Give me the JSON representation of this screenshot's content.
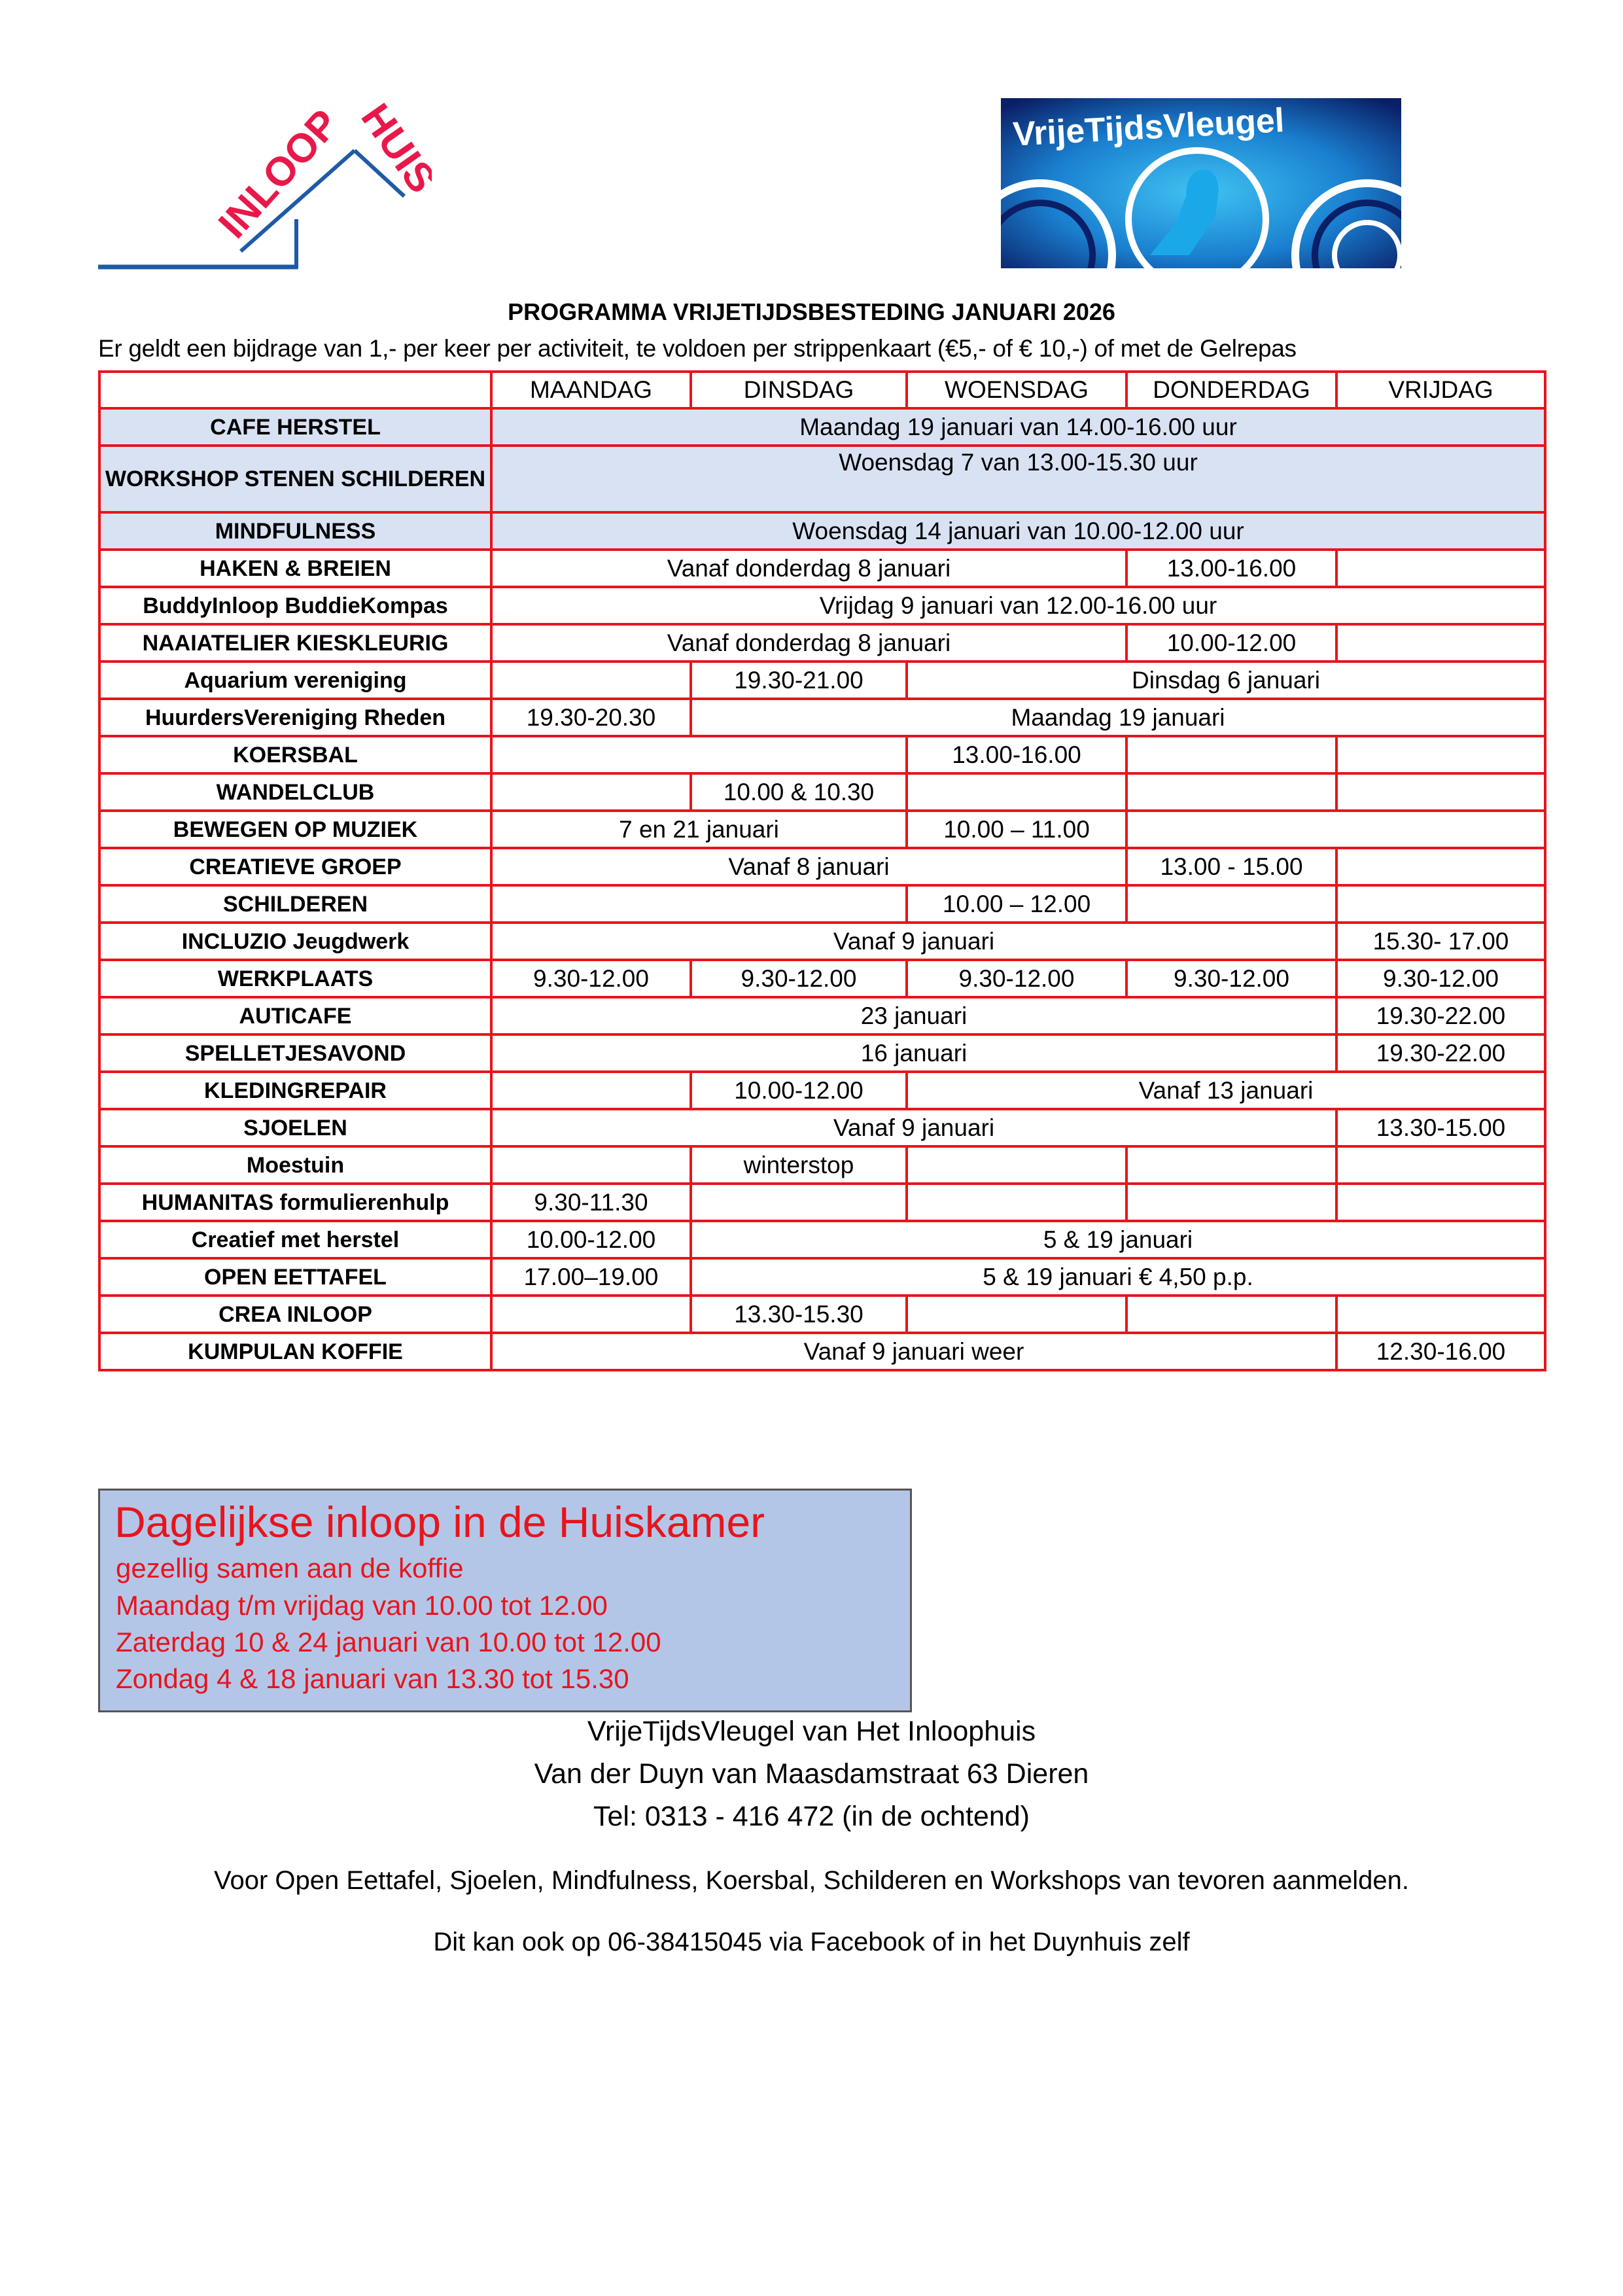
{
  "logos": {
    "left": {
      "word1": "INLOOP",
      "word2": "HUIS",
      "red": "#e8194a",
      "blue": "#1f5aa6"
    },
    "right": {
      "text": "VrijeTijdsVleugel",
      "blue": "#1a7fd0"
    }
  },
  "title": "PROGRAMMA VRIJETIJDSBESTEDING JANUARI 2026",
  "subtitle": "Er geldt een bijdrage van  1,- per keer per activiteit, te voldoen per strippenkaart (€5,- of € 10,-) of met de Gelrepas",
  "colors": {
    "border": "#e8141c",
    "highlight_row": "#d9e2f3",
    "box_bg": "#b4c6e7",
    "box_text": "#e8141c"
  },
  "table": {
    "days": [
      "MAANDAG",
      "DINSDAG",
      "WOENSDAG",
      "DONDERDAG",
      "VRIJDAG"
    ],
    "rows": [
      {
        "label": "CAFE HERSTEL",
        "hl": true,
        "cells": [
          {
            "t": "Maandag 19 januari van 14.00-16.00 uur",
            "s": 5
          }
        ]
      },
      {
        "label": "WORKSHOP STENEN SCHILDEREN",
        "hl": true,
        "tall": true,
        "cells": [
          {
            "t": "Woensdag 7 van 13.00-15.30 uur",
            "s": 5
          }
        ]
      },
      {
        "label": "MINDFULNESS",
        "hl": true,
        "cells": [
          {
            "t": "Woensdag 14 januari van 10.00-12.00 uur",
            "s": 5
          }
        ]
      },
      {
        "label": "HAKEN & BREIEN",
        "cells": [
          {
            "t": "Vanaf donderdag 8 januari",
            "s": 3
          },
          {
            "t": "13.00-16.00"
          },
          {
            "t": ""
          }
        ]
      },
      {
        "label": "BuddyInloop BuddieKompas",
        "cells": [
          {
            "t": "Vrijdag 9 januari van 12.00-16.00 uur",
            "s": 5
          }
        ]
      },
      {
        "label": "NAAIATELIER KIESKLEURIG",
        "cells": [
          {
            "t": "Vanaf donderdag 8 januari",
            "s": 3
          },
          {
            "t": "10.00-12.00"
          },
          {
            "t": ""
          }
        ]
      },
      {
        "label": "Aquarium vereniging",
        "cells": [
          {
            "t": ""
          },
          {
            "t": "19.30-21.00"
          },
          {
            "t": "Dinsdag 6 januari",
            "s": 3
          }
        ]
      },
      {
        "label": "HuurdersVereniging Rheden",
        "cells": [
          {
            "t": "19.30-20.30"
          },
          {
            "t": "Maandag 19 januari",
            "s": 4
          }
        ]
      },
      {
        "label": "KOERSBAL",
        "cells": [
          {
            "t": "",
            "s": 2
          },
          {
            "t": "13.00-16.00"
          },
          {
            "t": ""
          },
          {
            "t": ""
          }
        ]
      },
      {
        "label": "WANDELCLUB",
        "cells": [
          {
            "t": ""
          },
          {
            "t": "10.00 & 10.30"
          },
          {
            "t": ""
          },
          {
            "t": ""
          },
          {
            "t": ""
          }
        ]
      },
      {
        "label": "BEWEGEN OP MUZIEK",
        "cells": [
          {
            "t": "7 en 21 januari",
            "s": 2
          },
          {
            "t": "10.00 – 11.00"
          },
          {
            "t": "",
            "s": 2
          }
        ]
      },
      {
        "label": "CREATIEVE GROEP",
        "cells": [
          {
            "t": "Vanaf 8 januari",
            "s": 3
          },
          {
            "t": "13.00 - 15.00"
          },
          {
            "t": ""
          }
        ]
      },
      {
        "label": "SCHILDEREN",
        "cells": [
          {
            "t": "",
            "s": 2
          },
          {
            "t": "10.00 – 12.00"
          },
          {
            "t": ""
          },
          {
            "t": ""
          }
        ]
      },
      {
        "label": "INCLUZIO Jeugdwerk",
        "cells": [
          {
            "t": "Vanaf 9 januari",
            "s": 4
          },
          {
            "t": "15.30- 17.00"
          }
        ]
      },
      {
        "label": "WERKPLAATS",
        "cells": [
          {
            "t": "9.30-12.00"
          },
          {
            "t": "9.30-12.00"
          },
          {
            "t": "9.30-12.00"
          },
          {
            "t": "9.30-12.00"
          },
          {
            "t": "9.30-12.00"
          }
        ]
      },
      {
        "label": "AUTICAFE",
        "cells": [
          {
            "t": "23 januari",
            "s": 4
          },
          {
            "t": "19.30-22.00"
          }
        ]
      },
      {
        "label": "SPELLETJESAVOND",
        "cells": [
          {
            "t": "16 januari",
            "s": 4
          },
          {
            "t": "19.30-22.00"
          }
        ]
      },
      {
        "label": "KLEDINGREPAIR",
        "cells": [
          {
            "t": ""
          },
          {
            "t": "10.00-12.00"
          },
          {
            "t": "Vanaf 13 januari",
            "s": 3
          }
        ]
      },
      {
        "label": "SJOELEN",
        "cells": [
          {
            "t": "Vanaf 9 januari",
            "s": 4
          },
          {
            "t": "13.30-15.00"
          }
        ]
      },
      {
        "label": "Moestuin",
        "cells": [
          {
            "t": ""
          },
          {
            "t": "winterstop"
          },
          {
            "t": ""
          },
          {
            "t": ""
          },
          {
            "t": ""
          }
        ]
      },
      {
        "label": "HUMANITAS formulierenhulp",
        "cells": [
          {
            "t": "9.30-11.30"
          },
          {
            "t": ""
          },
          {
            "t": ""
          },
          {
            "t": ""
          },
          {
            "t": ""
          }
        ]
      },
      {
        "label": "Creatief met herstel",
        "cells": [
          {
            "t": "10.00-12.00"
          },
          {
            "t": "5 & 19 januari",
            "s": 4
          }
        ]
      },
      {
        "label": "OPEN EETTAFEL",
        "cells": [
          {
            "t": "17.00–19.00"
          },
          {
            "t": "5 & 19 januari € 4,50 p.p.",
            "s": 4
          }
        ]
      },
      {
        "label": "CREA INLOOP",
        "cells": [
          {
            "t": ""
          },
          {
            "t": "13.30-15.30"
          },
          {
            "t": ""
          },
          {
            "t": ""
          },
          {
            "t": ""
          }
        ]
      },
      {
        "label": "KUMPULAN KOFFIE",
        "cells": [
          {
            "t": "Vanaf 9 januari weer",
            "s": 4
          },
          {
            "t": "12.30-16.00"
          }
        ]
      }
    ]
  },
  "daily_box": {
    "heading": "Dagelijkse inloop in de Huiskamer",
    "lines": [
      "gezellig samen aan de koffie",
      "Maandag t/m vrijdag van 10.00 tot 12.00",
      "Zaterdag 10 & 24 januari van 10.00 tot 12.00",
      "Zondag 4 & 18 januari van 13.30 tot 15.30"
    ]
  },
  "footer": {
    "org": "VrijeTijdsVleugel van Het Inloophuis",
    "address": "Van der Duyn van Maasdamstraat 63 Dieren",
    "phone": "Tel: 0313 - 416 472 (in de ochtend)",
    "note1": "Voor Open Eettafel, Sjoelen, Mindfulness, Koersbal, Schilderen en Workshops van tevoren aanmelden.",
    "note2": "Dit kan ook op 06-38415045 via Facebook of in het Duynhuis zelf"
  }
}
